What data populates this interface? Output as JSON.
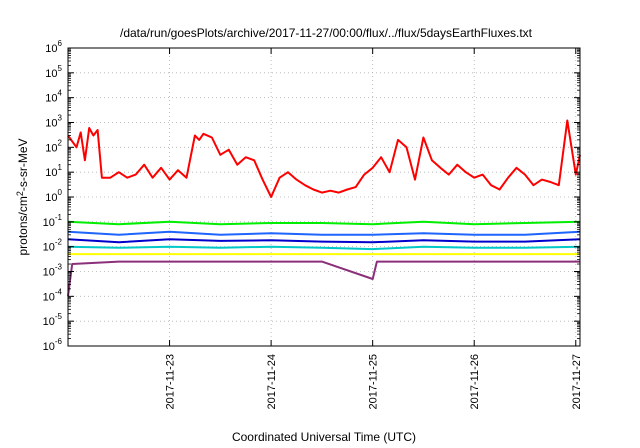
{
  "chart_data": {
    "type": "line",
    "title": "/data/run/goesPlots/archive/2017-11-27/00:00/flux/../flux/5daysEarthFluxes.txt",
    "xlabel": "Coordinated Universal Time (UTC)",
    "ylabel": "protons/cm²-s-sr-MeV",
    "y_scale": "log",
    "ylim": [
      1e-06,
      1000000.0
    ],
    "y_ticks": [
      {
        "value": 1e-06,
        "base": "10",
        "exp": "-6"
      },
      {
        "value": 1e-05,
        "base": "10",
        "exp": "-5"
      },
      {
        "value": 0.0001,
        "base": "10",
        "exp": "-4"
      },
      {
        "value": 0.001,
        "base": "10",
        "exp": "-3"
      },
      {
        "value": 0.01,
        "base": "10",
        "exp": "-2"
      },
      {
        "value": 0.1,
        "base": "10",
        "exp": "-1"
      },
      {
        "value": 1,
        "base": "10",
        "exp": "0"
      },
      {
        "value": 10,
        "base": "10",
        "exp": "1"
      },
      {
        "value": 100,
        "base": "10",
        "exp": "2"
      },
      {
        "value": 1000,
        "base": "10",
        "exp": "3"
      },
      {
        "value": 10000,
        "base": "10",
        "exp": "4"
      },
      {
        "value": 100000,
        "base": "10",
        "exp": "5"
      },
      {
        "value": 1000000,
        "base": "10",
        "exp": "6"
      }
    ],
    "xlim": [
      "2017-11-22T00:00",
      "2017-11-27T01:00"
    ],
    "x_ticks": [
      "2017-11-23",
      "2017-11-24",
      "2017-11-25",
      "2017-11-26",
      "2017-11-27"
    ],
    "grid": true,
    "legend": "none",
    "series": [
      {
        "color": "#ff0000",
        "points": [
          [
            "2017-11-22T00:00",
            300
          ],
          [
            "2017-11-22T02:00",
            100
          ],
          [
            "2017-11-22T03:00",
            400
          ],
          [
            "2017-11-22T04:00",
            30
          ],
          [
            "2017-11-22T05:00",
            600
          ],
          [
            "2017-11-22T06:00",
            300
          ],
          [
            "2017-11-22T07:00",
            500
          ],
          [
            "2017-11-22T08:00",
            6
          ],
          [
            "2017-11-22T10:00",
            6
          ],
          [
            "2017-11-22T12:00",
            10
          ],
          [
            "2017-11-22T14:00",
            6
          ],
          [
            "2017-11-22T16:00",
            8
          ],
          [
            "2017-11-22T18:00",
            20
          ],
          [
            "2017-11-22T20:00",
            6
          ],
          [
            "2017-11-22T22:00",
            15
          ],
          [
            "2017-11-23T00:00",
            5
          ],
          [
            "2017-11-23T02:00",
            12
          ],
          [
            "2017-11-23T04:00",
            6
          ],
          [
            "2017-11-23T06:00",
            300
          ],
          [
            "2017-11-23T07:00",
            200
          ],
          [
            "2017-11-23T08:00",
            350
          ],
          [
            "2017-11-23T10:00",
            250
          ],
          [
            "2017-11-23T12:00",
            50
          ],
          [
            "2017-11-23T14:00",
            80
          ],
          [
            "2017-11-23T16:00",
            20
          ],
          [
            "2017-11-23T18:00",
            40
          ],
          [
            "2017-11-23T20:00",
            30
          ],
          [
            "2017-11-23T22:00",
            5
          ],
          [
            "2017-11-24T00:00",
            1
          ],
          [
            "2017-11-24T02:00",
            6
          ],
          [
            "2017-11-24T04:00",
            10
          ],
          [
            "2017-11-24T06:00",
            5
          ],
          [
            "2017-11-24T08:00",
            3
          ],
          [
            "2017-11-24T10:00",
            2
          ],
          [
            "2017-11-24T12:00",
            1.5
          ],
          [
            "2017-11-24T14:00",
            1.8
          ],
          [
            "2017-11-24T16:00",
            1.5
          ],
          [
            "2017-11-24T18:00",
            2
          ],
          [
            "2017-11-24T20:00",
            2.5
          ],
          [
            "2017-11-24T22:00",
            8
          ],
          [
            "2017-11-25T00:00",
            15
          ],
          [
            "2017-11-25T02:00",
            40
          ],
          [
            "2017-11-25T04:00",
            10
          ],
          [
            "2017-11-25T06:00",
            200
          ],
          [
            "2017-11-25T08:00",
            100
          ],
          [
            "2017-11-25T10:00",
            5
          ],
          [
            "2017-11-25T12:00",
            250
          ],
          [
            "2017-11-25T14:00",
            30
          ],
          [
            "2017-11-25T16:00",
            15
          ],
          [
            "2017-11-25T18:00",
            8
          ],
          [
            "2017-11-25T20:00",
            20
          ],
          [
            "2017-11-25T22:00",
            10
          ],
          [
            "2017-11-26T00:00",
            6
          ],
          [
            "2017-11-26T02:00",
            8
          ],
          [
            "2017-11-26T04:00",
            3
          ],
          [
            "2017-11-26T06:00",
            2
          ],
          [
            "2017-11-26T08:00",
            6
          ],
          [
            "2017-11-26T10:00",
            15
          ],
          [
            "2017-11-26T12:00",
            8
          ],
          [
            "2017-11-26T14:00",
            3
          ],
          [
            "2017-11-26T16:00",
            5
          ],
          [
            "2017-11-26T18:00",
            4
          ],
          [
            "2017-11-26T20:00",
            3
          ],
          [
            "2017-11-26T22:00",
            1200
          ],
          [
            "2017-11-27T00:00",
            8
          ],
          [
            "2017-11-27T01:00",
            50
          ]
        ]
      },
      {
        "color": "#00ee00",
        "points": [
          [
            "2017-11-22T00:00",
            0.1
          ],
          [
            "2017-11-22T12:00",
            0.08
          ],
          [
            "2017-11-23T00:00",
            0.1
          ],
          [
            "2017-11-23T12:00",
            0.08
          ],
          [
            "2017-11-24T00:00",
            0.09
          ],
          [
            "2017-11-24T12:00",
            0.09
          ],
          [
            "2017-11-25T00:00",
            0.08
          ],
          [
            "2017-11-25T12:00",
            0.1
          ],
          [
            "2017-11-26T00:00",
            0.08
          ],
          [
            "2017-11-26T12:00",
            0.09
          ],
          [
            "2017-11-27T01:00",
            0.1
          ]
        ]
      },
      {
        "color": "#1e64ff",
        "points": [
          [
            "2017-11-22T00:00",
            0.04
          ],
          [
            "2017-11-22T12:00",
            0.03
          ],
          [
            "2017-11-23T00:00",
            0.04
          ],
          [
            "2017-11-23T12:00",
            0.03
          ],
          [
            "2017-11-24T00:00",
            0.035
          ],
          [
            "2017-11-24T12:00",
            0.03
          ],
          [
            "2017-11-25T00:00",
            0.03
          ],
          [
            "2017-11-25T12:00",
            0.035
          ],
          [
            "2017-11-26T00:00",
            0.03
          ],
          [
            "2017-11-26T12:00",
            0.03
          ],
          [
            "2017-11-27T01:00",
            0.04
          ]
        ]
      },
      {
        "color": "#0000cc",
        "points": [
          [
            "2017-11-22T00:00",
            0.02
          ],
          [
            "2017-11-22T12:00",
            0.015
          ],
          [
            "2017-11-23T00:00",
            0.02
          ],
          [
            "2017-11-23T12:00",
            0.017
          ],
          [
            "2017-11-24T00:00",
            0.018
          ],
          [
            "2017-11-24T12:00",
            0.016
          ],
          [
            "2017-11-25T00:00",
            0.015
          ],
          [
            "2017-11-25T12:00",
            0.018
          ],
          [
            "2017-11-26T00:00",
            0.016
          ],
          [
            "2017-11-26T12:00",
            0.016
          ],
          [
            "2017-11-27T01:00",
            0.02
          ]
        ]
      },
      {
        "color": "#00c8c8",
        "points": [
          [
            "2017-11-22T00:00",
            0.01
          ],
          [
            "2017-11-22T12:00",
            0.009
          ],
          [
            "2017-11-23T00:00",
            0.01
          ],
          [
            "2017-11-23T12:00",
            0.009
          ],
          [
            "2017-11-24T00:00",
            0.01
          ],
          [
            "2017-11-24T12:00",
            0.009
          ],
          [
            "2017-11-25T00:00",
            0.008
          ],
          [
            "2017-11-25T12:00",
            0.01
          ],
          [
            "2017-11-26T00:00",
            0.009
          ],
          [
            "2017-11-26T12:00",
            0.009
          ],
          [
            "2017-11-27T01:00",
            0.01
          ]
        ]
      },
      {
        "color": "#ffff00",
        "points": [
          [
            "2017-11-22T00:00",
            0.005
          ],
          [
            "2017-11-22T12:00",
            0.005
          ],
          [
            "2017-11-23T00:00",
            0.005
          ],
          [
            "2017-11-23T12:00",
            0.005
          ],
          [
            "2017-11-24T00:00",
            0.005
          ],
          [
            "2017-11-24T12:00",
            0.005
          ],
          [
            "2017-11-25T00:00",
            0.005
          ],
          [
            "2017-11-25T12:00",
            0.005
          ],
          [
            "2017-11-26T00:00",
            0.005
          ],
          [
            "2017-11-26T12:00",
            0.005
          ],
          [
            "2017-11-27T01:00",
            0.005
          ]
        ]
      },
      {
        "color": "#8b2f7a",
        "points": [
          [
            "2017-11-22T00:00",
            0.0001
          ],
          [
            "2017-11-22T01:00",
            0.002
          ],
          [
            "2017-11-22T12:00",
            0.0025
          ],
          [
            "2017-11-23T00:00",
            0.0025
          ],
          [
            "2017-11-23T12:00",
            0.0025
          ],
          [
            "2017-11-24T00:00",
            0.0025
          ],
          [
            "2017-11-24T12:00",
            0.0025
          ],
          [
            "2017-11-25T00:00",
            0.0005
          ],
          [
            "2017-11-25T01:00",
            0.0025
          ],
          [
            "2017-11-25T12:00",
            0.0025
          ],
          [
            "2017-11-26T00:00",
            0.0025
          ],
          [
            "2017-11-26T12:00",
            0.0025
          ],
          [
            "2017-11-27T01:00",
            0.0025
          ]
        ]
      }
    ]
  }
}
